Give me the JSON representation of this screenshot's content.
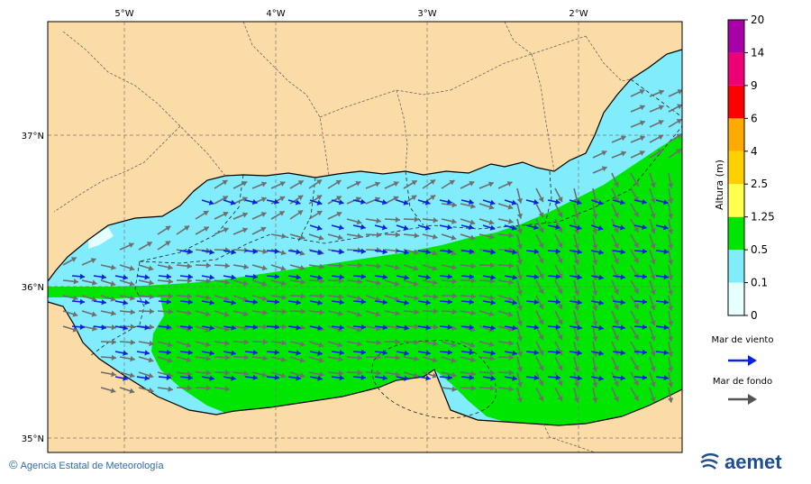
{
  "map": {
    "lon_ticks": [
      "5°W",
      "4°W",
      "3°W",
      "2°W"
    ],
    "lat_ticks": [
      "37°N",
      "36°N",
      "35°N"
    ],
    "colors": {
      "land": "#fbdca6",
      "wind_sea_arrow": "#0a22e0",
      "swell_arrow": "#6e6e6e"
    }
  },
  "legend": {
    "title": "Altura (m)",
    "levels": [
      "0",
      "0.1",
      "0.5",
      "1.25",
      "2.5",
      "4",
      "6",
      "9",
      "14",
      "20"
    ],
    "colors": [
      "#e6ffff",
      "#80ecfc",
      "#00e600",
      "#ffff4d",
      "#ffd000",
      "#ffaa00",
      "#ff0000",
      "#ee0077",
      "#aa00aa"
    ],
    "wind_sea_label": "Mar de viento",
    "swell_label": "Mar de fondo"
  },
  "footer": {
    "credit": "Agencia Estatal de Meteorología",
    "logo_text": "aemet"
  }
}
